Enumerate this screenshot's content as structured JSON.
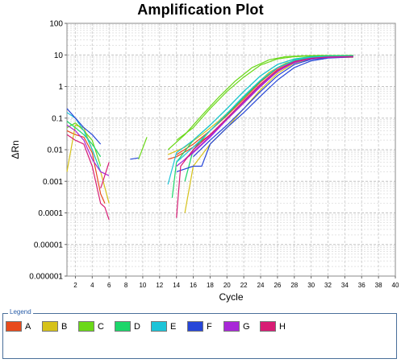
{
  "chart_data": {
    "type": "line",
    "title": "Amplification Plot",
    "xlabel": "Cycle",
    "ylabel": "ΔRn",
    "xlim": [
      1,
      40
    ],
    "ylim": [
      1e-06,
      100
    ],
    "yscale": "log",
    "grid": true,
    "x_ticks": [
      "2",
      "4",
      "6",
      "8",
      "10",
      "12",
      "14",
      "16",
      "18",
      "20",
      "22",
      "24",
      "26",
      "28",
      "30",
      "32",
      "34",
      "36",
      "38",
      "40"
    ],
    "y_ticks": [
      "0.000001",
      "0.00001",
      "0.0001",
      "0.001",
      "0.01",
      "0.1",
      "1",
      "10",
      "100"
    ],
    "legend_position": "bottom",
    "series": [
      {
        "name": "A",
        "color": "#e84a1c",
        "early": [
          [
            1,
            0.04
          ],
          [
            2,
            0.03
          ],
          [
            3,
            0.025
          ],
          [
            4,
            0.008
          ],
          [
            5,
            0.0004
          ],
          [
            5.5,
            0.0002
          ]
        ],
        "curves": [
          [
            [
              13,
              0.005
            ],
            [
              14,
              0.006
            ],
            [
              16,
              0.012
            ],
            [
              18,
              0.03
            ],
            [
              20,
              0.09
            ],
            [
              22,
              0.3
            ],
            [
              24,
              1.1
            ],
            [
              26,
              3.2
            ],
            [
              28,
              6
            ],
            [
              30,
              7.8
            ],
            [
              32,
              8.5
            ],
            [
              34,
              8.8
            ],
            [
              35,
              8.9
            ]
          ],
          [
            [
              14,
              0.007
            ],
            [
              16,
              0.015
            ],
            [
              18,
              0.04
            ],
            [
              20,
              0.12
            ],
            [
              22,
              0.4
            ],
            [
              24,
              1.4
            ],
            [
              26,
              3.8
            ],
            [
              28,
              6.5
            ],
            [
              30,
              8
            ],
            [
              32,
              8.6
            ],
            [
              35,
              8.9
            ]
          ]
        ]
      },
      {
        "name": "B",
        "color": "#d6c21a",
        "early": [
          [
            1,
            0.002
          ],
          [
            2,
            0.06
          ],
          [
            3,
            0.05
          ],
          [
            4,
            0.01
          ],
          [
            5,
            0.002
          ],
          [
            6,
            0.0002
          ]
        ],
        "curves": [
          [
            [
              15,
              0.0001
            ],
            [
              16,
              0.003
            ],
            [
              18,
              0.015
            ],
            [
              20,
              0.05
            ],
            [
              22,
              0.2
            ],
            [
              24,
              0.8
            ],
            [
              26,
              2.6
            ],
            [
              28,
              5.5
            ],
            [
              30,
              7.5
            ],
            [
              32,
              8.2
            ],
            [
              35,
              8.5
            ]
          ],
          [
            [
              13,
              0.007
            ],
            [
              15,
              0.012
            ],
            [
              17,
              0.03
            ],
            [
              19,
              0.08
            ],
            [
              21,
              0.25
            ],
            [
              23,
              0.9
            ],
            [
              25,
              2.8
            ],
            [
              27,
              5.5
            ],
            [
              29,
              7.3
            ],
            [
              31,
              8.1
            ],
            [
              35,
              8.4
            ]
          ]
        ]
      },
      {
        "name": "C",
        "color": "#6ad818",
        "early": [
          [
            1,
            0.05
          ],
          [
            2,
            0.07
          ],
          [
            3,
            0.04
          ],
          [
            4,
            0.02
          ],
          [
            5,
            0.003
          ]
        ],
        "curves": [
          [
            [
              9.5,
              0.005
            ],
            [
              10.5,
              0.025
            ]
          ],
          [
            [
              13,
              0.01
            ],
            [
              15,
              0.03
            ],
            [
              17,
              0.12
            ],
            [
              19,
              0.45
            ],
            [
              21,
              1.5
            ],
            [
              23,
              4
            ],
            [
              25,
              7
            ],
            [
              27,
              8.8
            ],
            [
              29,
              9.4
            ],
            [
              31,
              9.6
            ],
            [
              35,
              9.7
            ]
          ],
          [
            [
              14,
              0.02
            ],
            [
              16,
              0.05
            ],
            [
              18,
              0.2
            ],
            [
              20,
              0.7
            ],
            [
              22,
              2
            ],
            [
              24,
              4.8
            ],
            [
              26,
              7.5
            ],
            [
              28,
              8.8
            ],
            [
              30,
              9.3
            ],
            [
              35,
              9.6
            ]
          ]
        ]
      },
      {
        "name": "D",
        "color": "#1cd66a",
        "early": [
          [
            1,
            0.08
          ],
          [
            2,
            0.05
          ],
          [
            3,
            0.03
          ],
          [
            4,
            0.015
          ],
          [
            5,
            0.006
          ]
        ],
        "curves": [
          [
            [
              13.5,
              0.0003
            ],
            [
              14,
              0.004
            ],
            [
              16,
              0.02
            ],
            [
              18,
              0.06
            ],
            [
              20,
              0.2
            ],
            [
              22,
              0.7
            ],
            [
              24,
              2.2
            ],
            [
              26,
              5
            ],
            [
              28,
              7.5
            ],
            [
              30,
              8.8
            ],
            [
              32,
              9.3
            ],
            [
              35,
              9.5
            ]
          ],
          [
            [
              15,
              0.001
            ],
            [
              16,
              0.01
            ],
            [
              18,
              0.04
            ],
            [
              20,
              0.13
            ],
            [
              22,
              0.45
            ],
            [
              24,
              1.5
            ],
            [
              26,
              4
            ],
            [
              28,
              6.8
            ],
            [
              30,
              8.3
            ],
            [
              35,
              9
            ]
          ]
        ]
      },
      {
        "name": "E",
        "color": "#1cc4d8",
        "early": [
          [
            1,
            0.15
          ],
          [
            2,
            0.1
          ],
          [
            3,
            0.04
          ],
          [
            4,
            0.01
          ],
          [
            5,
            0.002
          ]
        ],
        "curves": [
          [
            [
              13,
              0.0008
            ],
            [
              14,
              0.008
            ],
            [
              16,
              0.02
            ],
            [
              18,
              0.06
            ],
            [
              20,
              0.2
            ],
            [
              22,
              0.7
            ],
            [
              24,
              2.2
            ],
            [
              26,
              5
            ],
            [
              28,
              7.3
            ],
            [
              30,
              8.5
            ],
            [
              32,
              9.1
            ],
            [
              35,
              9.3
            ]
          ],
          [
            [
              14,
              0.004
            ],
            [
              16,
              0.012
            ],
            [
              18,
              0.04
            ],
            [
              20,
              0.14
            ],
            [
              22,
              0.5
            ],
            [
              24,
              1.6
            ],
            [
              26,
              4
            ],
            [
              28,
              6.5
            ],
            [
              30,
              8
            ],
            [
              35,
              8.9
            ]
          ]
        ]
      },
      {
        "name": "F",
        "color": "#2646d8",
        "early": [
          [
            1,
            0.2
          ],
          [
            2,
            0.1
          ],
          [
            3,
            0.05
          ],
          [
            4,
            0.03
          ],
          [
            5,
            0.015
          ]
        ],
        "curves": [
          [
            [
              8.5,
              0.005
            ],
            [
              9.5,
              0.0055
            ]
          ],
          [
            [
              14,
              0.002
            ],
            [
              16,
              0.003
            ],
            [
              17,
              0.003
            ],
            [
              18,
              0.015
            ],
            [
              20,
              0.05
            ],
            [
              22,
              0.15
            ],
            [
              24,
              0.5
            ],
            [
              26,
              1.6
            ],
            [
              28,
              4
            ],
            [
              30,
              6.5
            ],
            [
              32,
              8
            ],
            [
              35,
              8.6
            ]
          ],
          [
            [
              16,
              0.006
            ],
            [
              18,
              0.02
            ],
            [
              20,
              0.06
            ],
            [
              22,
              0.2
            ],
            [
              24,
              0.7
            ],
            [
              26,
              2.2
            ],
            [
              28,
              5
            ],
            [
              30,
              7.2
            ],
            [
              32,
              8.3
            ],
            [
              35,
              8.7
            ]
          ]
        ]
      },
      {
        "name": "G",
        "color": "#a828d8",
        "early": [
          [
            1,
            0.06
          ],
          [
            2,
            0.04
          ],
          [
            3,
            0.02
          ],
          [
            4,
            0.005
          ],
          [
            5,
            0.002
          ],
          [
            6,
            0.0015
          ]
        ],
        "curves": [
          [
            [
              14,
              0.003
            ],
            [
              16,
              0.008
            ],
            [
              18,
              0.025
            ],
            [
              20,
              0.09
            ],
            [
              22,
              0.3
            ],
            [
              24,
              1
            ],
            [
              26,
              3
            ],
            [
              28,
              5.8
            ],
            [
              30,
              7.6
            ],
            [
              32,
              8.4
            ],
            [
              35,
              8.8
            ]
          ],
          [
            [
              15,
              0.005
            ],
            [
              17,
              0.015
            ],
            [
              19,
              0.05
            ],
            [
              21,
              0.17
            ],
            [
              23,
              0.6
            ],
            [
              25,
              1.9
            ],
            [
              27,
              4.5
            ],
            [
              29,
              6.9
            ],
            [
              31,
              8.1
            ],
            [
              35,
              8.7
            ]
          ]
        ]
      },
      {
        "name": "H",
        "color": "#d81c74",
        "early": [
          [
            1,
            0.03
          ],
          [
            2,
            0.02
          ],
          [
            3,
            0.015
          ],
          [
            4,
            0.003
          ],
          [
            5,
            0.0002
          ],
          [
            5.5,
            0.00015
          ],
          [
            6,
            6e-05
          ]
        ],
        "curves": [
          [
            [
              14,
              7e-05
            ],
            [
              14.5,
              0.003
            ],
            [
              16,
              0.01
            ],
            [
              18,
              0.03
            ],
            [
              20,
              0.1
            ],
            [
              22,
              0.35
            ],
            [
              24,
              1.2
            ],
            [
              26,
              3.4
            ],
            [
              28,
              6.2
            ],
            [
              30,
              7.9
            ],
            [
              32,
              8.6
            ],
            [
              35,
              8.9
            ]
          ],
          [
            [
              5,
              0.0006
            ],
            [
              6,
              0.004
            ]
          ]
        ]
      }
    ]
  }
}
